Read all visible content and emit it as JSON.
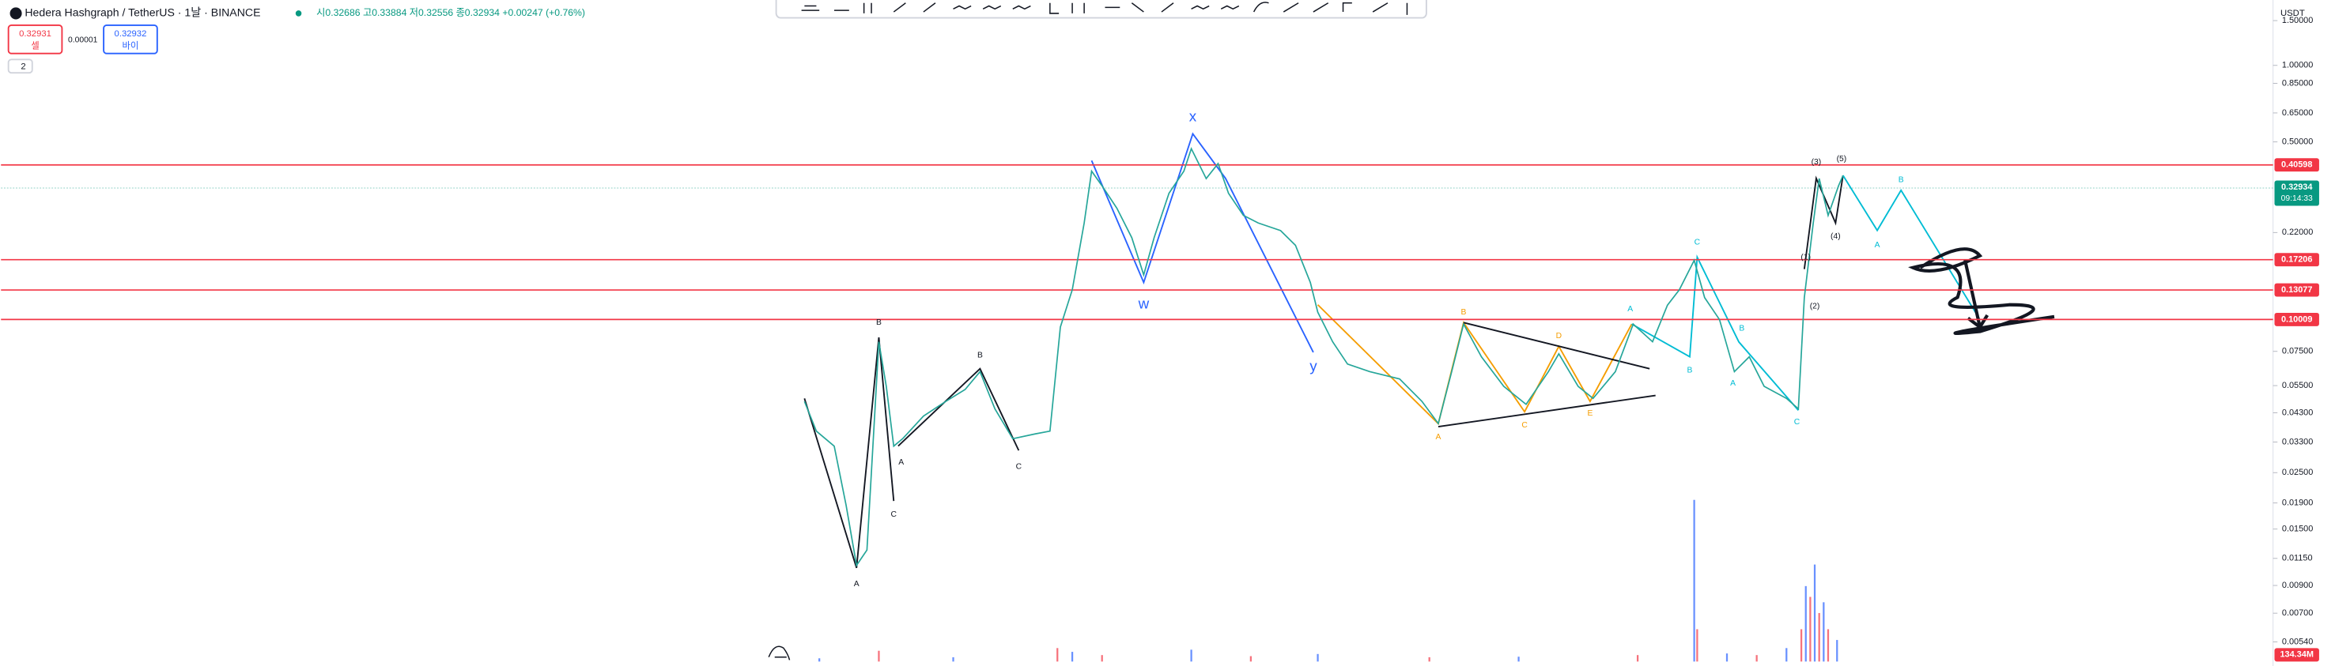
{
  "header": {
    "symbol": "Hedera Hashgraph / TetherUS · 1날 · BINANCE",
    "ohlc": "시0.32686 고0.33884 저0.32556 종0.32934 +0.00247 (+0.76%)"
  },
  "order_buttons": {
    "sell_price": "0.32931",
    "sell": "셀",
    "spread": "0.00001",
    "buy_price": "0.32932",
    "buy": "바이"
  },
  "indicator_toggle": "2",
  "currency": "USDT",
  "price_scale": {
    "log": true,
    "ylim": [
      0.0045,
      1.9
    ],
    "ticks": [
      {
        "value": 1.5,
        "label": "1.50000"
      },
      {
        "value": 1,
        "label": "1.00000"
      },
      {
        "value": 0.85,
        "label": "0.85000"
      },
      {
        "value": 0.65,
        "label": "0.65000"
      },
      {
        "value": 0.5,
        "label": "0.50000"
      },
      {
        "value": 0.22,
        "label": "0.22000"
      },
      {
        "value": 0.075,
        "label": "0.07500"
      },
      {
        "value": 0.055,
        "label": "0.05500"
      },
      {
        "value": 0.043,
        "label": "0.04300"
      },
      {
        "value": 0.033,
        "label": "0.03300"
      },
      {
        "value": 0.025,
        "label": "0.02500"
      },
      {
        "value": 0.019,
        "label": "0.01900"
      },
      {
        "value": 0.015,
        "label": "0.01500"
      },
      {
        "value": 0.0115,
        "label": "0.01150"
      },
      {
        "value": 0.009,
        "label": "0.00900"
      },
      {
        "value": 0.007,
        "label": "0.00700"
      },
      {
        "value": 0.0054,
        "label": "0.00540"
      }
    ]
  },
  "levels": [
    {
      "value": 0.40598,
      "label": "0.40598",
      "color": "#f23645"
    },
    {
      "value": 0.17206,
      "label": "0.17206",
      "color": "#f23645"
    },
    {
      "value": 0.13077,
      "label": "0.13077",
      "color": "#f23645"
    },
    {
      "value": 0.10009,
      "label": "0.10009",
      "color": "#f23645"
    }
  ],
  "last_price": {
    "value": 0.32934,
    "label": "0.32934",
    "countdown": "09:14:33",
    "color": "#089981"
  },
  "price_trace": {
    "xlim": [
      0,
      700
    ],
    "color": "#26a69a",
    "x": [
      0,
      8,
      20,
      28,
      35,
      42,
      46,
      50,
      55,
      60,
      66,
      80,
      95,
      108,
      118,
      128,
      140,
      155,
      165,
      172,
      180,
      188,
      193,
      200,
      210,
      220,
      228,
      235,
      245,
      255,
      260,
      270,
      278,
      285,
      295,
      305,
      320,
      330,
      340,
      345,
      355,
      365,
      380,
      400,
      415,
      426,
      435,
      443,
      455,
      470,
      485,
      500,
      507,
      520,
      530,
      545,
      557,
      570,
      580,
      588,
      598,
      605,
      615,
      625,
      635,
      645,
      660,
      668,
      672,
      678,
      682,
      688,
      695,
      698
    ],
    "values": [
      0.0477,
      0.0364,
      0.0318,
      0.0186,
      0.0108,
      0.0124,
      0.0318,
      0.0818,
      0.0546,
      0.0318,
      0.034,
      0.0417,
      0.0477,
      0.0531,
      0.0624,
      0.0446,
      0.034,
      0.0355,
      0.0364,
      0.0935,
      0.131,
      0.24,
      0.384,
      0.336,
      0.274,
      0.21,
      0.15,
      0.21,
      0.314,
      0.384,
      0.47,
      0.359,
      0.411,
      0.314,
      0.257,
      0.24,
      0.224,
      0.196,
      0.14,
      0.107,
      0.0818,
      0.0668,
      0.0624,
      0.0584,
      0.0477,
      0.039,
      0.0624,
      0.096,
      0.0714,
      0.0546,
      0.0464,
      0.0624,
      0.0734,
      0.0546,
      0.049,
      0.0624,
      0.096,
      0.0818,
      0.114,
      0.131,
      0.171,
      0.122,
      0.1,
      0.0624,
      0.0714,
      0.0546,
      0.049,
      0.0446,
      0.122,
      0.24,
      0.359,
      0.257,
      0.336,
      0.369
    ]
  },
  "volume": {
    "label": "134.34M",
    "color": "#f23645",
    "ylim": [
      0,
      400
    ],
    "x": [
      10,
      50,
      100,
      170,
      180,
      200,
      260,
      300,
      345,
      420,
      480,
      560,
      598,
      600,
      620,
      640,
      660,
      670,
      673,
      676,
      679,
      682,
      685,
      688,
      694
    ],
    "values": [
      6,
      20,
      8,
      25,
      18,
      12,
      22,
      10,
      14,
      8,
      9,
      12,
      300,
      60,
      15,
      12,
      25,
      60,
      140,
      120,
      180,
      90,
      110,
      60,
      40
    ]
  },
  "wave_labels": [
    {
      "text": "A",
      "color": "#131722"
    },
    {
      "text": "B",
      "color": "#131722"
    },
    {
      "text": "C",
      "color": "#131722"
    },
    {
      "text": "A",
      "color": "#131722"
    },
    {
      "text": "B",
      "color": "#131722"
    },
    {
      "text": "C",
      "color": "#131722"
    },
    {
      "text": "x",
      "color": "#2962ff"
    },
    {
      "text": "w",
      "color": "#2962ff"
    },
    {
      "text": "y",
      "color": "#2962ff"
    },
    {
      "text": "A",
      "color": "#f59d00"
    },
    {
      "text": "B",
      "color": "#f59d00"
    },
    {
      "text": "C",
      "color": "#f59d00"
    },
    {
      "text": "D",
      "color": "#f59d00"
    },
    {
      "text": "E",
      "color": "#f59d00"
    },
    {
      "text": "A",
      "color": "#00bcd4"
    },
    {
      "text": "B",
      "color": "#00bcd4"
    },
    {
      "text": "C",
      "color": "#00bcd4"
    },
    {
      "text": "B",
      "color": "#00bcd4"
    },
    {
      "text": "A",
      "color": "#00bcd4"
    },
    {
      "text": "C",
      "color": "#00bcd4"
    },
    {
      "text": "A",
      "color": "#00bcd4"
    },
    {
      "text": "B",
      "color": "#00bcd4"
    },
    {
      "text": "(3)",
      "color": "#131722"
    },
    {
      "text": "(5)",
      "color": "#131722"
    },
    {
      "text": "(4)",
      "color": "#131722"
    },
    {
      "text": "(1)",
      "color": "#131722"
    },
    {
      "text": "(2)",
      "color": "#131722"
    }
  ]
}
